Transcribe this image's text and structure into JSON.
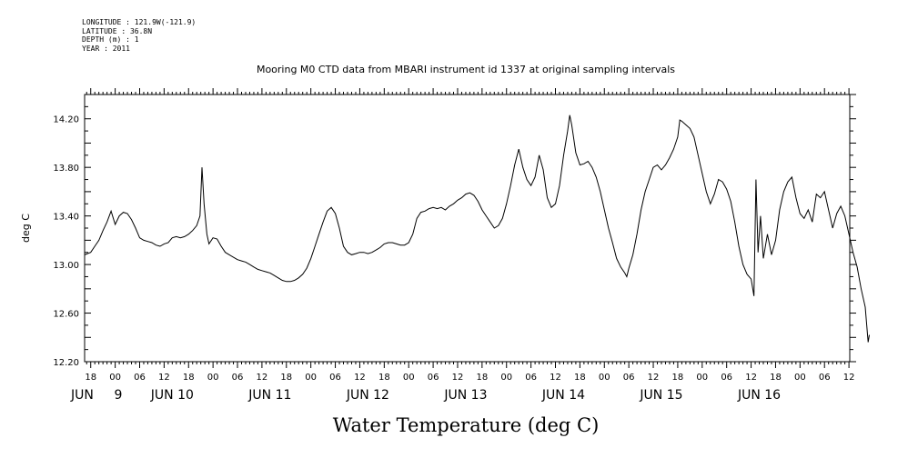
{
  "metadata": {
    "longitude": "LONGITUDE : 121.9W(-121.9)",
    "latitude": "LATITUDE : 36.8N",
    "depth": "DEPTH (m) : 1",
    "year": "YEAR : 2011"
  },
  "chart_data": {
    "type": "line",
    "title": "Mooring M0 CTD data from MBARI instrument id 1337 at original sampling intervals",
    "xlabel": "Water Temperature (deg C)",
    "ylabel": "deg C",
    "ylim": [
      12.2,
      14.4
    ],
    "yticks": [
      "12.20",
      "12.60",
      "13.00",
      "13.40",
      "13.80",
      "14.20"
    ],
    "xlim_hours": [
      -7.5,
      180.2
    ],
    "x_hour_labels": [
      {
        "h": -6,
        "label": "18"
      },
      {
        "h": 0,
        "label": "00"
      },
      {
        "h": 6,
        "label": "06"
      },
      {
        "h": 12,
        "label": "12"
      },
      {
        "h": 18,
        "label": "18"
      },
      {
        "h": 24,
        "label": "00"
      },
      {
        "h": 30,
        "label": "06"
      },
      {
        "h": 36,
        "label": "12"
      },
      {
        "h": 42,
        "label": "18"
      },
      {
        "h": 48,
        "label": "00"
      },
      {
        "h": 54,
        "label": "06"
      },
      {
        "h": 60,
        "label": "12"
      },
      {
        "h": 66,
        "label": "18"
      },
      {
        "h": 72,
        "label": "00"
      },
      {
        "h": 78,
        "label": "06"
      },
      {
        "h": 84,
        "label": "12"
      },
      {
        "h": 90,
        "label": "18"
      },
      {
        "h": 96,
        "label": "00"
      },
      {
        "h": 102,
        "label": "06"
      },
      {
        "h": 108,
        "label": "12"
      },
      {
        "h": 114,
        "label": "18"
      },
      {
        "h": 120,
        "label": "00"
      },
      {
        "h": 126,
        "label": "06"
      },
      {
        "h": 132,
        "label": "12"
      },
      {
        "h": 138,
        "label": "18"
      },
      {
        "h": 144,
        "label": "00"
      },
      {
        "h": 150,
        "label": "06"
      },
      {
        "h": 156,
        "label": "12"
      },
      {
        "h": 162,
        "label": "18"
      },
      {
        "h": 168,
        "label": "00"
      },
      {
        "h": 174,
        "label": "06"
      },
      {
        "h": 180,
        "label": "12"
      }
    ],
    "x_day_labels": [
      {
        "h": -8,
        "label": "JUN"
      },
      {
        "h": 0,
        "label": "9"
      },
      {
        "h": 14,
        "label": "JUN 10"
      },
      {
        "h": 38,
        "label": "JUN 11"
      },
      {
        "h": 62,
        "label": "JUN 12"
      },
      {
        "h": 86,
        "label": "JUN 13"
      },
      {
        "h": 110,
        "label": "JUN 14"
      },
      {
        "h": 134,
        "label": "JUN 15"
      },
      {
        "h": 158,
        "label": "JUN 16"
      }
    ],
    "series": [
      {
        "color": "#000000",
        "points": [
          [
            -7.5,
            13.08
          ],
          [
            -6,
            13.1
          ],
          [
            -5,
            13.15
          ],
          [
            -4,
            13.2
          ],
          [
            -3,
            13.28
          ],
          [
            -2,
            13.35
          ],
          [
            -1,
            13.44
          ],
          [
            0,
            13.33
          ],
          [
            1,
            13.4
          ],
          [
            2,
            13.43
          ],
          [
            3,
            13.42
          ],
          [
            4,
            13.37
          ],
          [
            5,
            13.3
          ],
          [
            6,
            13.22
          ],
          [
            7,
            13.2
          ],
          [
            8,
            13.19
          ],
          [
            9,
            13.18
          ],
          [
            10,
            13.16
          ],
          [
            11,
            13.15
          ],
          [
            12,
            13.17
          ],
          [
            13,
            13.18
          ],
          [
            14,
            13.22
          ],
          [
            15,
            13.23
          ],
          [
            16,
            13.22
          ],
          [
            17,
            13.23
          ],
          [
            18,
            13.25
          ],
          [
            19,
            13.28
          ],
          [
            20,
            13.32
          ],
          [
            20.8,
            13.4
          ],
          [
            21.3,
            13.8
          ],
          [
            21.8,
            13.5
          ],
          [
            22.5,
            13.25
          ],
          [
            23,
            13.17
          ],
          [
            24,
            13.22
          ],
          [
            25,
            13.21
          ],
          [
            26,
            13.15
          ],
          [
            27,
            13.1
          ],
          [
            28,
            13.08
          ],
          [
            29,
            13.06
          ],
          [
            30,
            13.04
          ],
          [
            31,
            13.03
          ],
          [
            32,
            13.02
          ],
          [
            33,
            13.0
          ],
          [
            34,
            12.98
          ],
          [
            35,
            12.96
          ],
          [
            36,
            12.95
          ],
          [
            37,
            12.94
          ],
          [
            38,
            12.93
          ],
          [
            39,
            12.91
          ],
          [
            40,
            12.89
          ],
          [
            41,
            12.87
          ],
          [
            42,
            12.86
          ],
          [
            43,
            12.86
          ],
          [
            44,
            12.87
          ],
          [
            45,
            12.89
          ],
          [
            46,
            12.92
          ],
          [
            47,
            12.97
          ],
          [
            48,
            13.05
          ],
          [
            49,
            13.15
          ],
          [
            50,
            13.25
          ],
          [
            51,
            13.35
          ],
          [
            52,
            13.44
          ],
          [
            53,
            13.47
          ],
          [
            54,
            13.42
          ],
          [
            55,
            13.3
          ],
          [
            56,
            13.15
          ],
          [
            57,
            13.1
          ],
          [
            58,
            13.08
          ],
          [
            59,
            13.09
          ],
          [
            60,
            13.1
          ],
          [
            61,
            13.1
          ],
          [
            62,
            13.09
          ],
          [
            63,
            13.1
          ],
          [
            64,
            13.12
          ],
          [
            65,
            13.14
          ],
          [
            66,
            13.17
          ],
          [
            67,
            13.18
          ],
          [
            68,
            13.18
          ],
          [
            69,
            13.17
          ],
          [
            70,
            13.16
          ],
          [
            71,
            13.16
          ],
          [
            72,
            13.18
          ],
          [
            73,
            13.25
          ],
          [
            74,
            13.38
          ],
          [
            75,
            13.43
          ],
          [
            76,
            13.44
          ],
          [
            77,
            13.46
          ],
          [
            78,
            13.47
          ],
          [
            79,
            13.46
          ],
          [
            80,
            13.47
          ],
          [
            81,
            13.45
          ],
          [
            82,
            13.48
          ],
          [
            83,
            13.5
          ],
          [
            84,
            13.53
          ],
          [
            85,
            13.55
          ],
          [
            86,
            13.58
          ],
          [
            87,
            13.59
          ],
          [
            88,
            13.57
          ],
          [
            89,
            13.52
          ],
          [
            90,
            13.45
          ],
          [
            91,
            13.4
          ],
          [
            92,
            13.35
          ],
          [
            93,
            13.3
          ],
          [
            94,
            13.32
          ],
          [
            95,
            13.38
          ],
          [
            96,
            13.5
          ],
          [
            97,
            13.65
          ],
          [
            98,
            13.82
          ],
          [
            99,
            13.95
          ],
          [
            100,
            13.8
          ],
          [
            101,
            13.7
          ],
          [
            102,
            13.65
          ],
          [
            103,
            13.72
          ],
          [
            104,
            13.9
          ],
          [
            105,
            13.78
          ],
          [
            106,
            13.55
          ],
          [
            107,
            13.47
          ],
          [
            108,
            13.5
          ],
          [
            109,
            13.65
          ],
          [
            110,
            13.9
          ],
          [
            111,
            14.1
          ],
          [
            111.5,
            14.23
          ],
          [
            112,
            14.15
          ],
          [
            113,
            13.92
          ],
          [
            114,
            13.82
          ],
          [
            115,
            13.83
          ],
          [
            116,
            13.85
          ],
          [
            117,
            13.8
          ],
          [
            118,
            13.72
          ],
          [
            119,
            13.6
          ],
          [
            120,
            13.45
          ],
          [
            121,
            13.3
          ],
          [
            122,
            13.18
          ],
          [
            123,
            13.05
          ],
          [
            124,
            12.98
          ],
          [
            125,
            12.93
          ],
          [
            125.5,
            12.9
          ],
          [
            126,
            12.97
          ],
          [
            127,
            13.08
          ],
          [
            128,
            13.25
          ],
          [
            129,
            13.45
          ],
          [
            130,
            13.6
          ],
          [
            131,
            13.7
          ],
          [
            132,
            13.8
          ],
          [
            133,
            13.82
          ],
          [
            134,
            13.78
          ],
          [
            135,
            13.82
          ],
          [
            136,
            13.88
          ],
          [
            137,
            13.95
          ],
          [
            138,
            14.05
          ],
          [
            138.5,
            14.19
          ],
          [
            139,
            14.18
          ],
          [
            140,
            14.15
          ],
          [
            141,
            14.12
          ],
          [
            142,
            14.05
          ],
          [
            143,
            13.9
          ],
          [
            144,
            13.75
          ],
          [
            145,
            13.6
          ],
          [
            146,
            13.5
          ],
          [
            147,
            13.58
          ],
          [
            148,
            13.7
          ],
          [
            149,
            13.68
          ],
          [
            150,
            13.62
          ],
          [
            151,
            13.52
          ],
          [
            152,
            13.35
          ],
          [
            153,
            13.15
          ],
          [
            154,
            13.0
          ],
          [
            155,
            12.92
          ],
          [
            156,
            12.88
          ],
          [
            156.7,
            12.74
          ],
          [
            157.2,
            13.7
          ],
          [
            157.7,
            13.1
          ],
          [
            158.3,
            13.4
          ],
          [
            159,
            13.05
          ],
          [
            160,
            13.25
          ],
          [
            161,
            13.08
          ],
          [
            162,
            13.2
          ],
          [
            163,
            13.45
          ],
          [
            164,
            13.6
          ],
          [
            165,
            13.68
          ],
          [
            166,
            13.72
          ],
          [
            167,
            13.55
          ],
          [
            168,
            13.42
          ],
          [
            169,
            13.38
          ],
          [
            170,
            13.45
          ],
          [
            171,
            13.35
          ],
          [
            172,
            13.58
          ],
          [
            173,
            13.55
          ],
          [
            174,
            13.6
          ],
          [
            175,
            13.45
          ],
          [
            176,
            13.3
          ],
          [
            177,
            13.42
          ],
          [
            178,
            13.48
          ],
          [
            179,
            13.4
          ],
          [
            180,
            13.25
          ],
          [
            181,
            13.1
          ],
          [
            182,
            12.98
          ],
          [
            183,
            12.8
          ],
          [
            184,
            12.65
          ],
          [
            184.7,
            12.36
          ],
          [
            185,
            12.42
          ]
        ]
      }
    ]
  }
}
